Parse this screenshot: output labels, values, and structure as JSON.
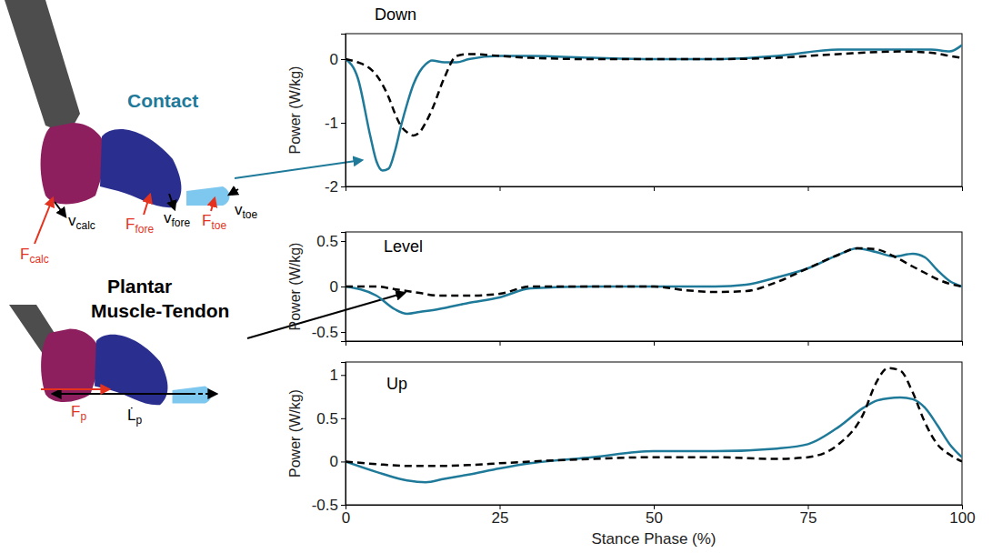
{
  "chart_data": [
    {
      "type": "line",
      "title": "Down",
      "y_label": "Power (W/kg)",
      "x": [
        0,
        2,
        4,
        5,
        6,
        7,
        8,
        9,
        10,
        11,
        12,
        13,
        14,
        16,
        18,
        20,
        25,
        30,
        40,
        50,
        60,
        70,
        80,
        90,
        95,
        98,
        100
      ],
      "series": [
        {
          "name": "Contact",
          "color": "#1f7a9a",
          "line_style": "solid",
          "values": [
            0,
            -0.3,
            -1.2,
            -1.6,
            -1.75,
            -1.72,
            -1.45,
            -1.05,
            -0.7,
            -0.4,
            -0.2,
            -0.08,
            -0.02,
            -0.05,
            -0.05,
            0,
            0.05,
            0.05,
            0.02,
            0,
            0,
            0.05,
            0.15,
            0.15,
            0.15,
            0.12,
            0.22
          ]
        },
        {
          "name": "Plantar Muscle-Tendon",
          "color": "#000000",
          "line_style": "dashed",
          "values": [
            0,
            -0.05,
            -0.15,
            -0.25,
            -0.4,
            -0.6,
            -0.85,
            -1.05,
            -1.15,
            -1.2,
            -1.15,
            -1.0,
            -0.8,
            -0.3,
            0.05,
            0.08,
            0.05,
            0.02,
            0,
            0,
            0,
            0.02,
            0.08,
            0.12,
            0.1,
            0.05,
            0.02
          ]
        }
      ],
      "xlim": [
        0,
        100
      ],
      "xticks": [
        0,
        25,
        50,
        75,
        100
      ],
      "ylim": [
        -2,
        0.4
      ],
      "yticks": [
        -2,
        -1,
        0
      ],
      "tick_labels": "y"
    },
    {
      "type": "line",
      "title": "Level",
      "y_label": "Power (W/kg)",
      "x": [
        0,
        5,
        8,
        10,
        12,
        15,
        20,
        25,
        30,
        40,
        50,
        55,
        60,
        65,
        70,
        75,
        80,
        83,
        86,
        89,
        92,
        94,
        96,
        98,
        100
      ],
      "series": [
        {
          "color": "#1f7a9a",
          "line_style": "solid",
          "values": [
            0,
            -0.1,
            -0.25,
            -0.3,
            -0.28,
            -0.25,
            -0.18,
            -0.12,
            -0.02,
            0,
            0,
            0,
            0,
            0.02,
            0.1,
            0.2,
            0.35,
            0.42,
            0.38,
            0.33,
            0.36,
            0.32,
            0.18,
            0.06,
            0
          ]
        },
        {
          "color": "#000000",
          "line_style": "dashed",
          "values": [
            0,
            0,
            -0.03,
            -0.05,
            -0.07,
            -0.1,
            -0.1,
            -0.08,
            0,
            0,
            0,
            -0.04,
            -0.06,
            -0.05,
            0.05,
            0.2,
            0.35,
            0.42,
            0.41,
            0.33,
            0.22,
            0.15,
            0.08,
            0.03,
            0
          ]
        }
      ],
      "xlim": [
        0,
        100
      ],
      "xticks": [
        0,
        25,
        50,
        75,
        100
      ],
      "ylim": [
        -0.6,
        0.6
      ],
      "yticks": [
        -0.5,
        0,
        0.5
      ],
      "tick_labels": "y"
    },
    {
      "type": "line",
      "title": "Up",
      "y_label": "Power (W/kg)",
      "x_label": "Stance Phase (%)",
      "x": [
        0,
        5,
        10,
        13,
        16,
        20,
        25,
        30,
        40,
        50,
        60,
        70,
        75,
        80,
        84,
        86,
        88,
        90,
        92,
        94,
        96,
        98,
        100
      ],
      "series": [
        {
          "color": "#1f7a9a",
          "line_style": "solid",
          "values": [
            0,
            -0.12,
            -0.22,
            -0.24,
            -0.2,
            -0.15,
            -0.08,
            -0.02,
            0.05,
            0.12,
            0.12,
            0.15,
            0.2,
            0.4,
            0.62,
            0.7,
            0.73,
            0.74,
            0.72,
            0.62,
            0.42,
            0.2,
            0.05
          ]
        },
        {
          "color": "#000000",
          "line_style": "dashed",
          "values": [
            0,
            -0.03,
            -0.05,
            -0.05,
            -0.05,
            -0.04,
            -0.02,
            0,
            0.03,
            0.05,
            0.05,
            0.03,
            0.05,
            0.2,
            0.55,
            0.9,
            1.08,
            1.05,
            0.8,
            0.45,
            0.2,
            0.08,
            0
          ]
        }
      ],
      "xlim": [
        0,
        100
      ],
      "xticks": [
        0,
        25,
        50,
        75,
        100
      ],
      "ylim": [
        -0.5,
        1.15
      ],
      "yticks": [
        -0.5,
        0,
        0.5,
        1
      ]
    }
  ],
  "diagram": {
    "labels": [
      {
        "main": "F",
        "sub": "calc"
      },
      {
        "main": "v",
        "sub": "calc"
      },
      {
        "main": "F",
        "sub": "fore"
      },
      {
        "main": "v",
        "sub": "fore"
      },
      {
        "main": "F",
        "sub": "toe"
      },
      {
        "main": "v",
        "sub": "toe"
      },
      {
        "main": "F",
        "sub": "p"
      },
      {
        "main": "L̇",
        "sub": "p"
      }
    ]
  }
}
